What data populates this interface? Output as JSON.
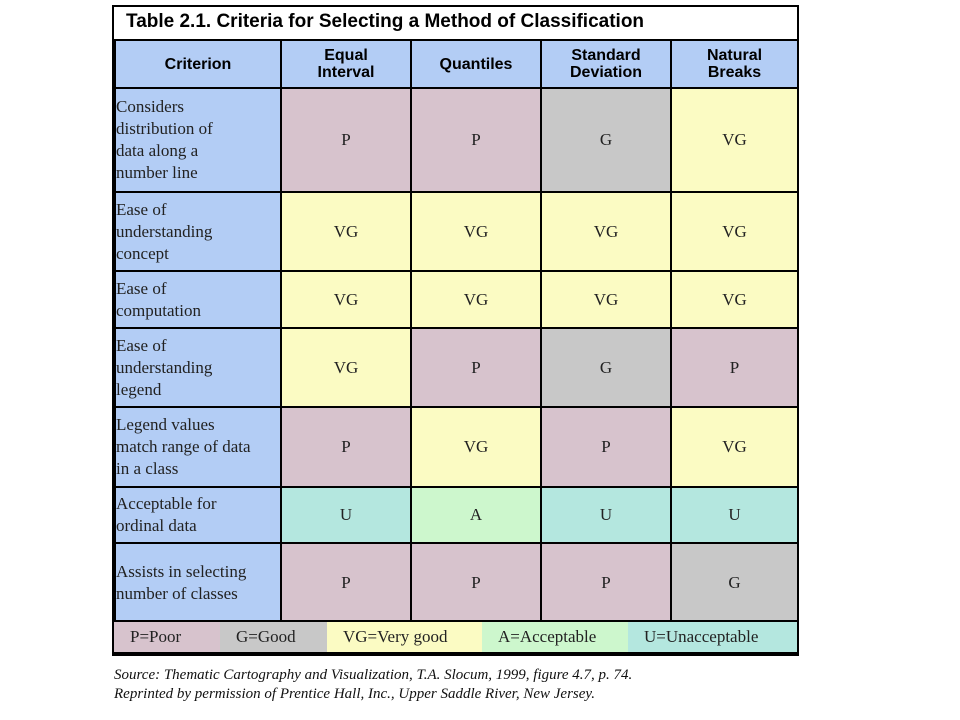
{
  "title": "Table 2.1. Criteria for Selecting a Method of Classification",
  "columns": [
    "Criterion",
    "Equal Interval",
    "Quantiles",
    "Standard Deviation",
    "Natural Breaks"
  ],
  "rows": [
    {
      "criterion": "Considers distribution of data along a number line",
      "values": [
        "P",
        "P",
        "G",
        "VG"
      ]
    },
    {
      "criterion": "Ease of understanding concept",
      "values": [
        "VG",
        "VG",
        "VG",
        "VG"
      ]
    },
    {
      "criterion": "Ease of computation",
      "values": [
        "VG",
        "VG",
        "VG",
        "VG"
      ]
    },
    {
      "criterion": "Ease of understanding legend",
      "values": [
        "VG",
        "P",
        "G",
        "P"
      ]
    },
    {
      "criterion": "Legend values match range of data in a class",
      "values": [
        "P",
        "VG",
        "P",
        "VG"
      ]
    },
    {
      "criterion": "Acceptable for ordinal data",
      "values": [
        "U",
        "A",
        "U",
        "U"
      ]
    },
    {
      "criterion": "Assists in selecting number of classes",
      "values": [
        "P",
        "P",
        "P",
        "G"
      ]
    }
  ],
  "legend": [
    "P=Poor",
    "G=Good",
    "VG=Very good",
    "A=Acceptable",
    "U=Unacceptable"
  ],
  "colors": {
    "header": "#b3cdf5",
    "P": "#d7c3cd",
    "G": "#c8c8c8",
    "VG": "#fbfbc3",
    "A": "#cdf7cd",
    "U": "#b4e7df"
  },
  "source": [
    "Source: Thematic Cartography and Visualization, T.A. Slocum, 1999, figure 4.7, p. 74.",
    "Reprinted by permission of Prentice Hall, Inc., Upper Saddle River, New Jersey."
  ]
}
